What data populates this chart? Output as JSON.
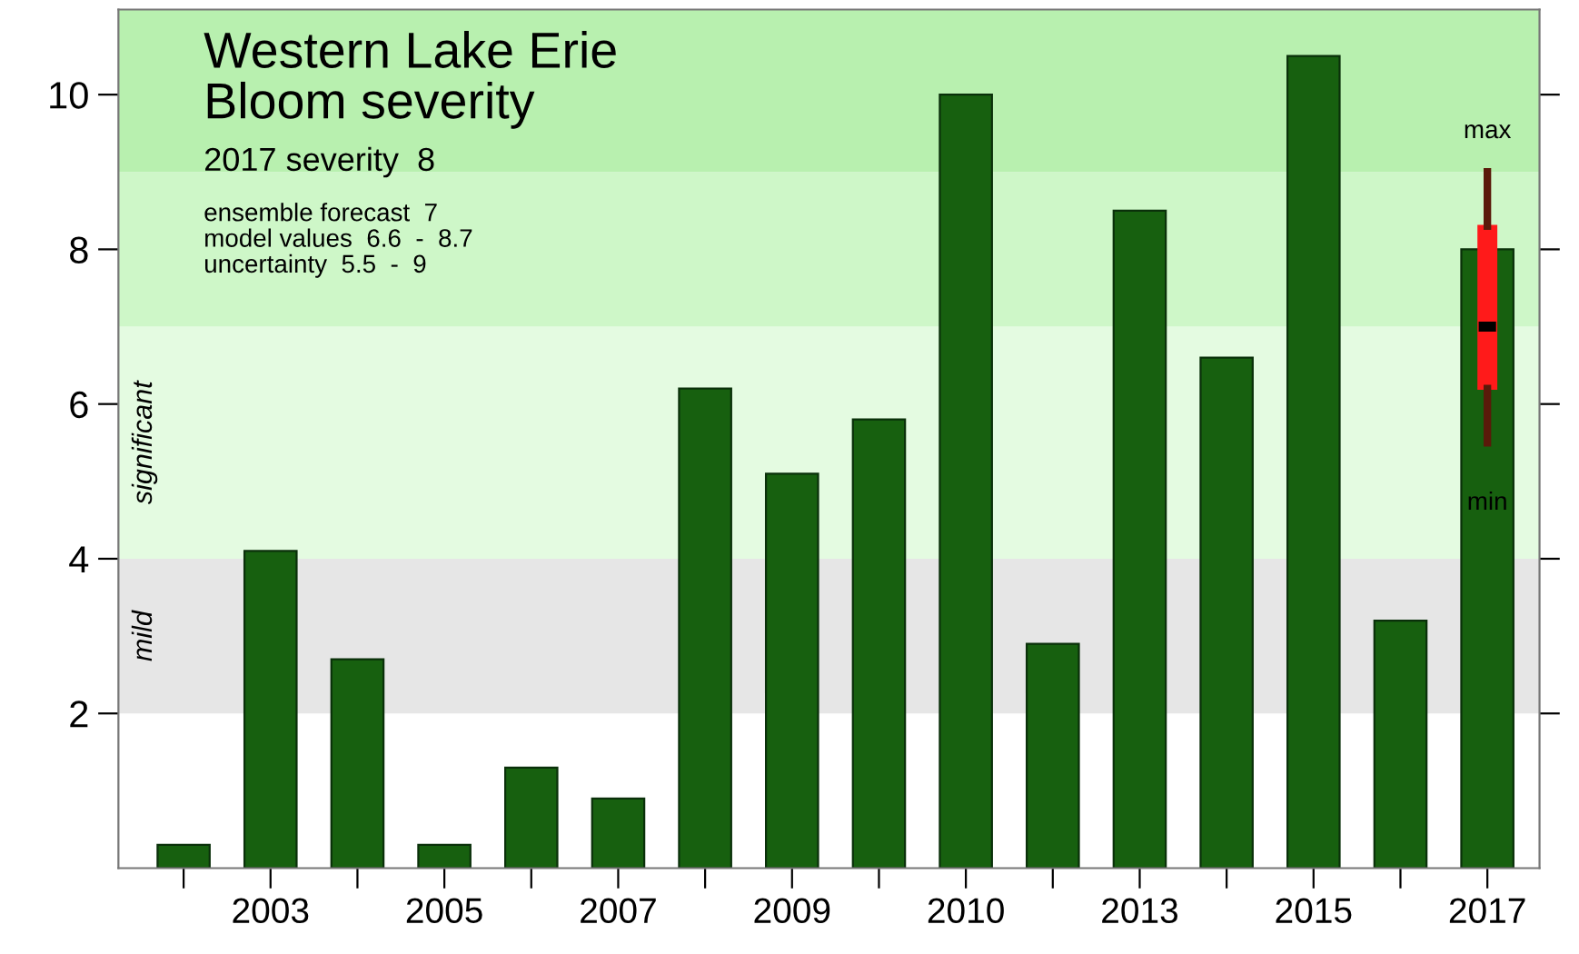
{
  "chart_data": {
    "type": "bar",
    "title": "Western Lake Erie\nBloom severity",
    "categories": [
      null,
      "2003",
      null,
      "2005",
      null,
      "2007",
      null,
      "2009",
      null,
      "2010",
      null,
      "2013",
      null,
      "2015",
      null,
      "2017"
    ],
    "series": [
      {
        "color": "#17600f",
        "values": [
          0.3,
          4.1,
          2.7,
          0.3,
          1.3,
          0.9,
          6.2,
          5.1,
          5.8,
          10.0,
          2.9,
          8.5,
          6.6,
          10.5,
          3.2,
          8.0
        ]
      },
      {
        "type": "box",
        "color": "#ff1a1a",
        "boxes": [
          null,
          null,
          null,
          null,
          null,
          null,
          null,
          null,
          null,
          null,
          null,
          null,
          null,
          null,
          null,
          {
            "low": 5.5,
            "q1": 6.2,
            "median": 7,
            "q3": 8.3,
            "high": 9
          }
        ]
      }
    ],
    "ylim": [
      0,
      11.1
    ],
    "yticks": [
      2,
      4,
      6,
      8,
      10
    ],
    "bands": [
      {
        "axis": "y",
        "from": 2,
        "to": 4,
        "label": "mild",
        "color": "#e6e6e6"
      },
      {
        "axis": "y",
        "from": 4,
        "to": 7,
        "label": "significant",
        "color": "#e4fbe1"
      },
      {
        "axis": "y",
        "from": 7,
        "to": 9,
        "color": "#cef7c8"
      },
      {
        "axis": "y",
        "from": 9,
        "to": 11.1,
        "color": "#b8f0af"
      }
    ],
    "annotations": [
      "2017 severity  8",
      "ensemble forecast  7",
      "model values  6.6  -  8.7",
      "uncertainty  5.5  -  9",
      {
        "text": "max",
        "x": "2017",
        "y": 9
      },
      {
        "text": "min",
        "x": "2017",
        "y": 5.5
      }
    ],
    "grid": false,
    "legend": false
  }
}
